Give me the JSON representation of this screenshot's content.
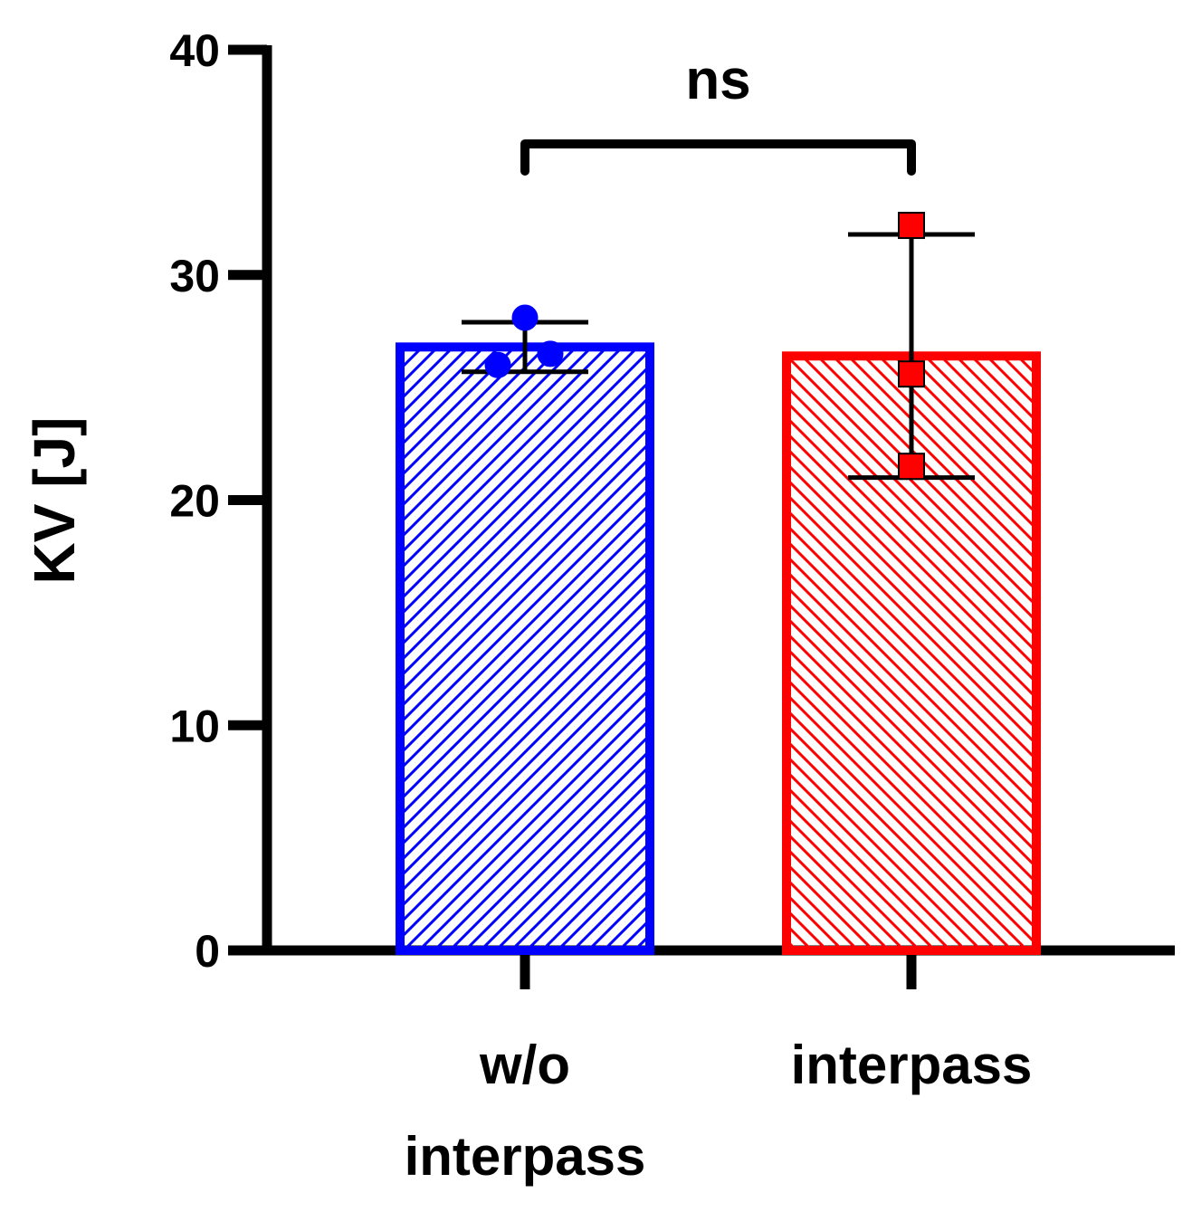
{
  "chart_data": {
    "type": "bar",
    "categories": [
      "w/o\ninterpass",
      "interpass"
    ],
    "values": [
      26.8,
      26.4
    ],
    "error_bars": [
      {
        "low": 25.7,
        "high": 27.9
      },
      {
        "low": 21.0,
        "high": 31.8
      }
    ],
    "points": [
      [
        28.1,
        26.0,
        26.5
      ],
      [
        32.2,
        25.6,
        21.5
      ]
    ],
    "colors": [
      "#0000ff",
      "#ff0000"
    ],
    "point_markers": [
      "circle",
      "square"
    ],
    "fill": "diagonal-hatch",
    "xlabel": "",
    "ylabel": "KV [J]",
    "ylim": [
      0,
      40
    ],
    "yticks": [
      "0",
      "10",
      "20",
      "30",
      "40"
    ],
    "grid": false,
    "annotations": [
      {
        "text": "ns",
        "type": "significance-bracket",
        "between": [
          "w/o\ninterpass",
          "interpass"
        ],
        "at": 35.5
      }
    ]
  }
}
